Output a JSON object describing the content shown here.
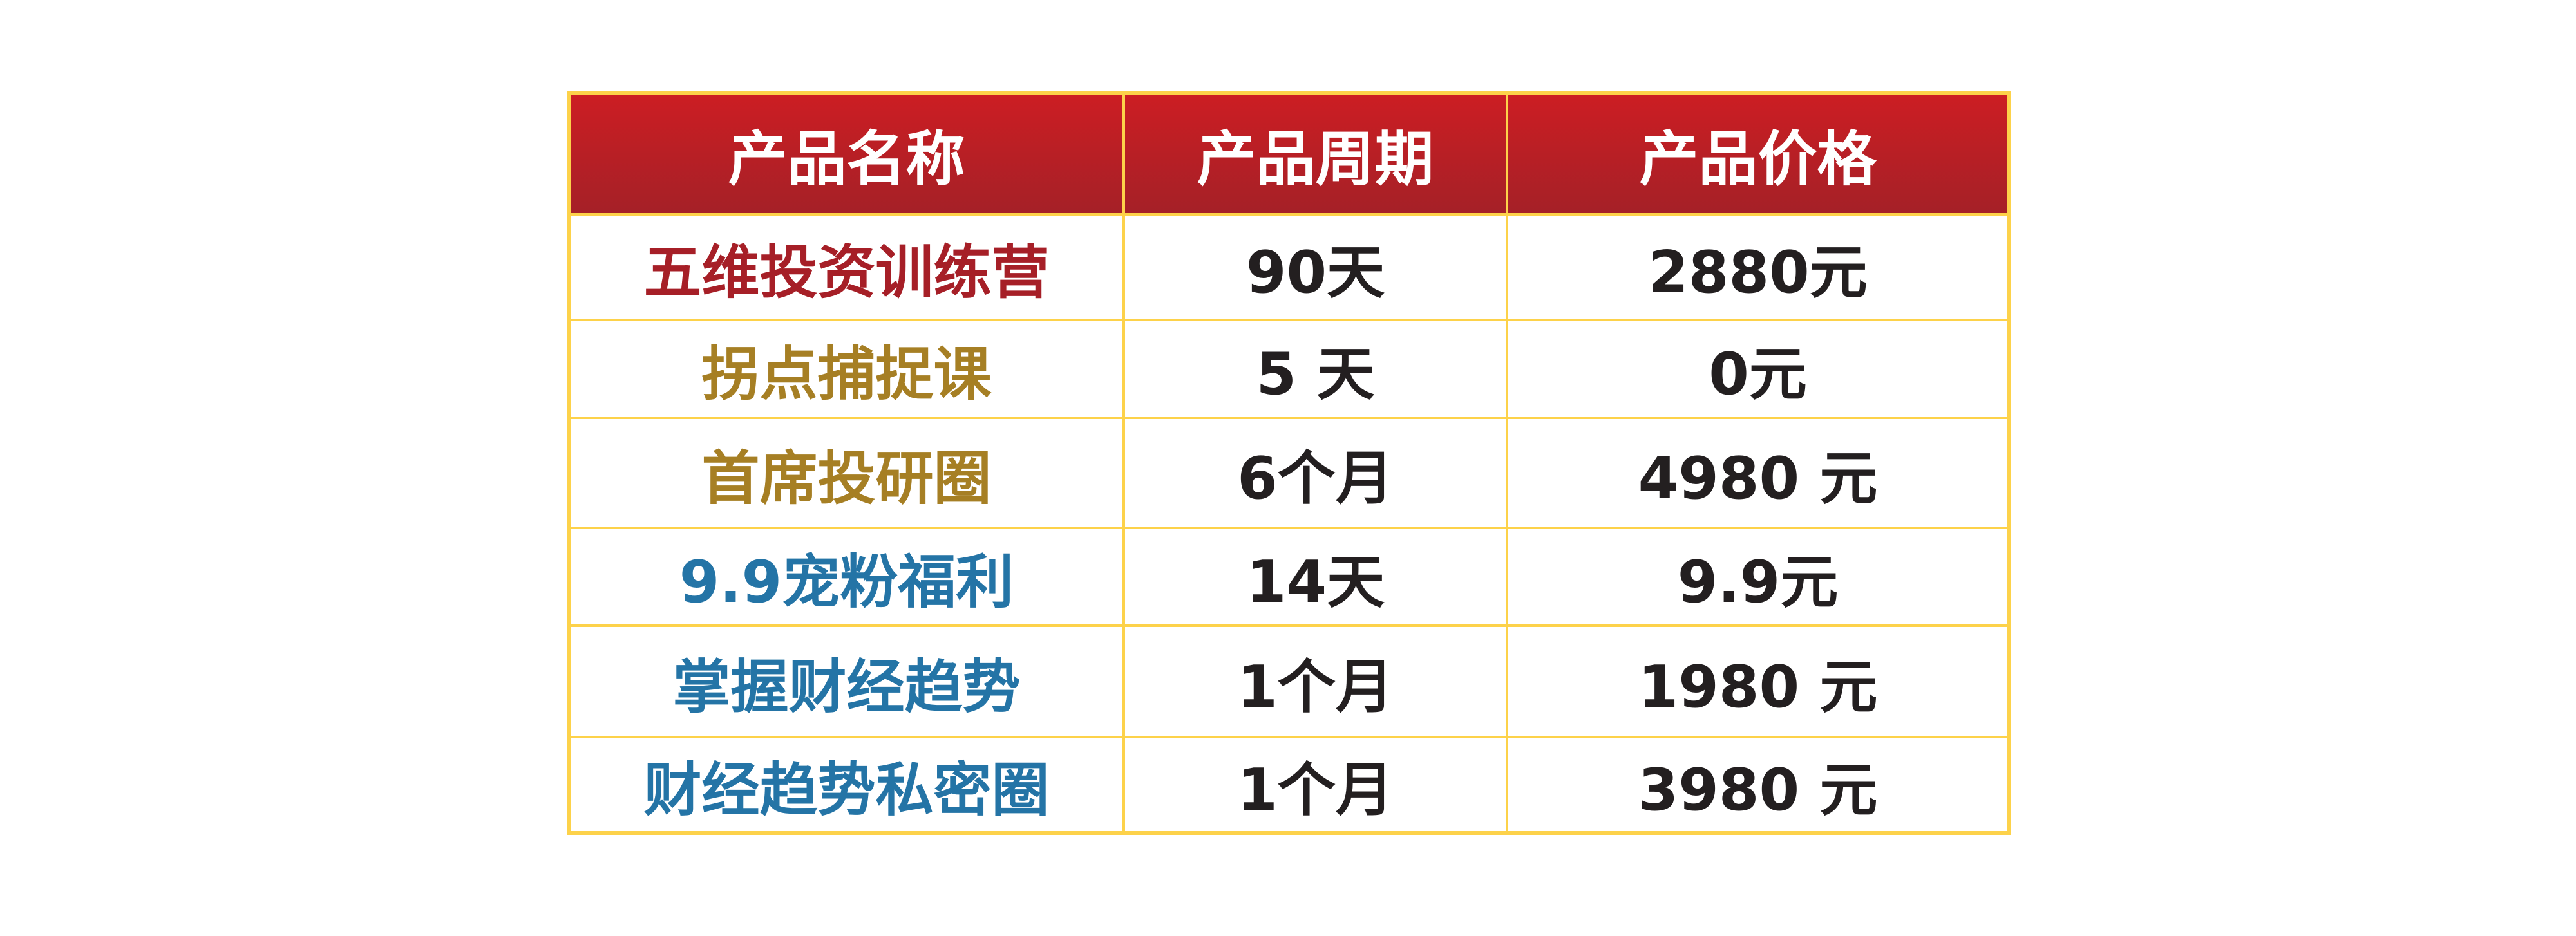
{
  "colors": {
    "header_bg_top": "#cc1e23",
    "header_bg_bottom": "#a52027",
    "border": "#fdd24a",
    "red": "#a61f27",
    "gold": "#a67f24",
    "blue": "#2474a6",
    "text": "#231f20"
  },
  "table": {
    "headers": [
      "产品名称",
      "产品周期",
      "产品价格"
    ],
    "rows": [
      {
        "name": "五维投资训练营",
        "period": "90天",
        "price": "2880元",
        "color": "red"
      },
      {
        "name": "拐点捕捉课",
        "period": "5 天",
        "price": "0元",
        "color": "gold"
      },
      {
        "name": "首席投研圈",
        "period": "6个月",
        "price": "4980 元",
        "color": "gold"
      },
      {
        "name": "9.9宠粉福利",
        "period": "14天",
        "price": "9.9元",
        "color": "blue"
      },
      {
        "name": "掌握财经趋势",
        "period": "1个月",
        "price": "1980 元",
        "color": "blue"
      },
      {
        "name": "财经趋势私密圈",
        "period": "1个月",
        "price": "3980 元",
        "color": "blue"
      }
    ]
  }
}
